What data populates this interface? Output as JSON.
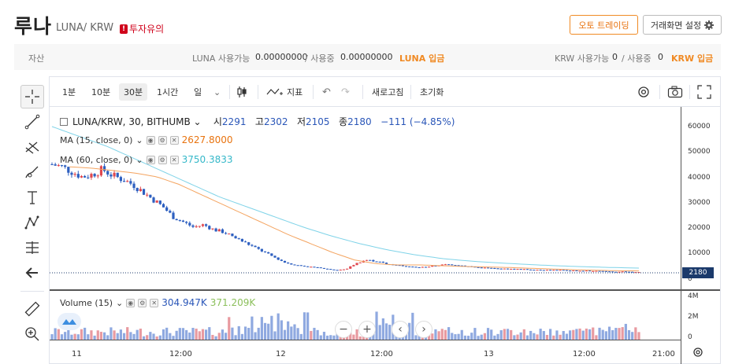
{
  "header": {
    "coin_name": "루나",
    "pair": "LUNA/ KRW",
    "warning_badge": "투자유의",
    "auto_trade_label": "오토 트레이딩",
    "screen_settings_label": "거래화면 설정"
  },
  "asset_bar": {
    "label": "자산",
    "luna_available_label": "LUNA 사용가능",
    "luna_available_value": "0.00000000",
    "luna_inuse_label": "/ 사용중",
    "luna_inuse_value": "0.00000000",
    "luna_deposit_label": "LUNA 입금",
    "krw_available_label": "KRW 사용가능",
    "krw_available_value": "0",
    "krw_inuse_label": "/ 사용중",
    "krw_inuse_value": "0",
    "krw_deposit_label": "KRW 입금"
  },
  "toolbar": {
    "intervals": [
      "1분",
      "10분",
      "30분",
      "1시간",
      "일"
    ],
    "active_interval": "30분",
    "indicator_label": "지표",
    "refresh_label": "새로고침",
    "reset_label": "초기화"
  },
  "chart_legend": {
    "symbol": "LUNA/KRW, 30, BITHUMB",
    "open_label": "시",
    "open": "2291",
    "high_label": "고",
    "high": "2302",
    "low_label": "저",
    "low": "2105",
    "close_label": "종",
    "close": "2180",
    "change": "−111 (−4.85%)",
    "ma15_label": "MA (15, close, 0)",
    "ma15_value": "2627.8000",
    "ma60_label": "MA (60, close, 0)",
    "ma60_value": "3750.3833",
    "volume_label": "Volume (15)",
    "volume_value": "304.947K",
    "volume_ma_value": "371.209K",
    "last_price_tag": "2180"
  },
  "colors": {
    "up": "#e0484f",
    "down": "#2d5fc0",
    "ma15": "#f4a460",
    "ma60": "#7fd3e8",
    "accent": "#f08a24"
  },
  "chart_data": {
    "type": "candlestick",
    "x_ticks": [
      "11",
      "12:00",
      "12",
      "12:00",
      "13",
      "12:00",
      "21:00"
    ],
    "price_ticks": [
      "60000",
      "50000",
      "40000",
      "30000",
      "20000",
      "10000",
      "0"
    ],
    "volume_ticks": [
      "4M",
      "2M",
      "0"
    ],
    "ylim": [
      0,
      65000
    ],
    "close_path": [
      45000,
      44000,
      42000,
      40000,
      41000,
      43000,
      40500,
      39000,
      37000,
      34000,
      31000,
      28000,
      24000,
      22000,
      20000,
      21000,
      19000,
      18000,
      16000,
      14000,
      12000,
      10000,
      8000,
      6000,
      5000,
      4500,
      4000,
      3500,
      3000,
      3200,
      5500,
      7000,
      6500,
      5500,
      5000,
      4500,
      4000,
      4200,
      4800,
      5200,
      5000,
      4500,
      4000,
      3800,
      3500,
      3400,
      3300,
      3200,
      3100,
      3000,
      2900,
      2800,
      2700,
      2600,
      2500,
      2400,
      2300,
      2200,
      2180
    ],
    "ma15_path": [
      44000,
      43500,
      42500,
      41500,
      40000,
      37000,
      33000,
      29000,
      25000,
      21000,
      17000,
      13500,
      10000,
      7000,
      5500,
      5000,
      5000,
      4700,
      4400,
      4200,
      4000,
      3700,
      3400,
      3100,
      2900,
      2700,
      2627
    ],
    "ma60_path": [
      60000,
      56000,
      52000,
      47000,
      42000,
      37000,
      32000,
      28000,
      24000,
      20000,
      16500,
      13500,
      11000,
      9000,
      7500,
      6500,
      5800,
      5200,
      4700,
      4300,
      4000,
      3750
    ]
  }
}
